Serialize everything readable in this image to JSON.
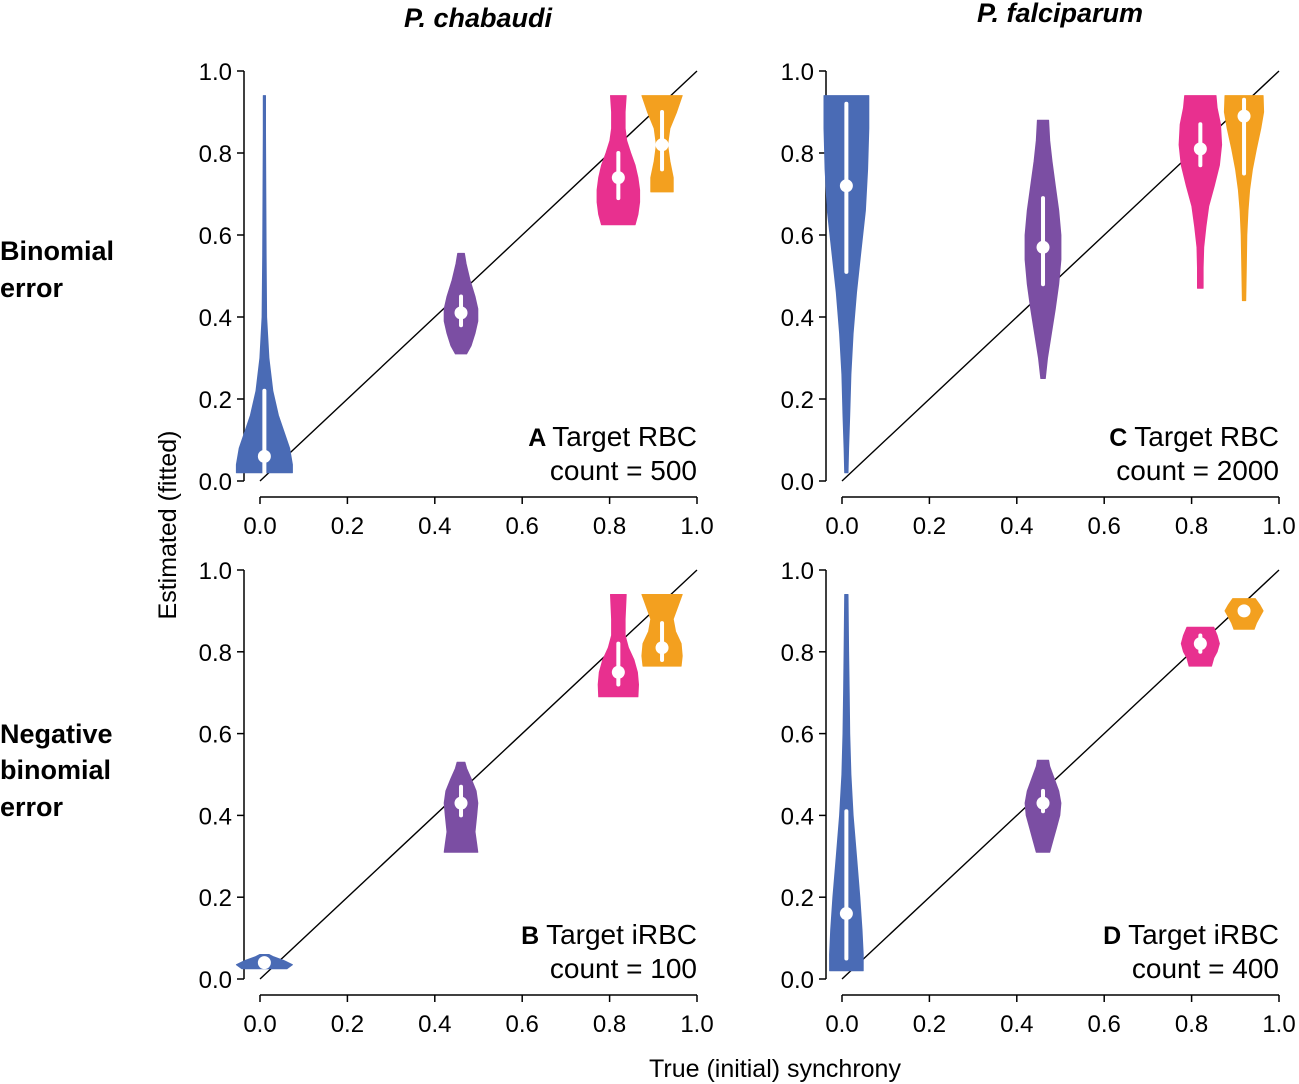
{
  "figure": {
    "col_titles": [
      "P. chabaudi",
      "P. falciparum"
    ],
    "row_titles": [
      [
        "Binomial",
        "error"
      ],
      [
        "Negative",
        "binomial",
        "error"
      ]
    ],
    "xlabel": "True (initial) synchrony",
    "ylabel": "Estimated (fitted)",
    "tick_labels": [
      "0.0",
      "0.2",
      "0.4",
      "0.6",
      "0.8",
      "1.0"
    ]
  },
  "chart_data": [
    {
      "type": "violin",
      "panel": "A",
      "label_lines": [
        "Target RBC",
        "count = 500"
      ],
      "xlim": [
        0,
        1
      ],
      "ylim": [
        0,
        1
      ],
      "xticks": [
        0,
        0.2,
        0.4,
        0.6,
        0.8,
        1.0
      ],
      "yticks": [
        0,
        0.2,
        0.4,
        0.6,
        0.8,
        1.0
      ],
      "reference_line": "y = x",
      "violins": [
        {
          "true": 0.01,
          "median": 0.06,
          "q1": 0.02,
          "q3": 0.22,
          "color": "#4a6bb5",
          "profile": [
            [
              0.02,
              0.05
            ],
            [
              0.04,
              0.05
            ],
            [
              0.08,
              0.045
            ],
            [
              0.12,
              0.035
            ],
            [
              0.16,
              0.025
            ],
            [
              0.22,
              0.015
            ],
            [
              0.3,
              0.008
            ],
            [
              0.4,
              0.004
            ],
            [
              0.55,
              0.003
            ],
            [
              0.7,
              0.0025
            ],
            [
              0.85,
              0.002
            ],
            [
              0.94,
              0.002
            ]
          ]
        },
        {
          "true": 0.46,
          "median": 0.41,
          "q1": 0.38,
          "q3": 0.45,
          "color": "#7b4ea3",
          "profile": [
            [
              0.31,
              0.01
            ],
            [
              0.33,
              0.018
            ],
            [
              0.36,
              0.025
            ],
            [
              0.39,
              0.03
            ],
            [
              0.42,
              0.03
            ],
            [
              0.45,
              0.025
            ],
            [
              0.49,
              0.016
            ],
            [
              0.53,
              0.009
            ],
            [
              0.555,
              0.006
            ]
          ]
        },
        {
          "true": 0.82,
          "median": 0.74,
          "q1": 0.69,
          "q3": 0.8,
          "color": "#e8308f",
          "profile": [
            [
              0.625,
              0.03
            ],
            [
              0.65,
              0.035
            ],
            [
              0.68,
              0.038
            ],
            [
              0.71,
              0.038
            ],
            [
              0.74,
              0.035
            ],
            [
              0.77,
              0.03
            ],
            [
              0.8,
              0.022
            ],
            [
              0.83,
              0.015
            ],
            [
              0.86,
              0.012
            ],
            [
              0.9,
              0.012
            ],
            [
              0.94,
              0.014
            ]
          ]
        },
        {
          "true": 0.92,
          "median": 0.82,
          "q1": 0.76,
          "q3": 0.9,
          "color": "#f3a01f",
          "profile": [
            [
              0.705,
              0.02
            ],
            [
              0.74,
              0.02
            ],
            [
              0.78,
              0.014
            ],
            [
              0.82,
              0.01
            ],
            [
              0.86,
              0.014
            ],
            [
              0.9,
              0.026
            ],
            [
              0.94,
              0.036
            ]
          ]
        }
      ]
    },
    {
      "type": "violin",
      "panel": "B",
      "label_lines": [
        "Target iRBC",
        "count = 100"
      ],
      "xlim": [
        0,
        1
      ],
      "ylim": [
        0,
        1
      ],
      "xticks": [
        0,
        0.2,
        0.4,
        0.6,
        0.8,
        1.0
      ],
      "yticks": [
        0,
        0.2,
        0.4,
        0.6,
        0.8,
        1.0
      ],
      "reference_line": "y = x",
      "violins": [
        {
          "true": 0.01,
          "median": 0.04,
          "q1": 0.03,
          "q3": 0.05,
          "color": "#4a6bb5",
          "profile": [
            [
              0.025,
              0.04
            ],
            [
              0.035,
              0.05
            ],
            [
              0.045,
              0.035
            ],
            [
              0.055,
              0.015
            ],
            [
              0.06,
              0.008
            ]
          ]
        },
        {
          "true": 0.46,
          "median": 0.43,
          "q1": 0.4,
          "q3": 0.47,
          "color": "#7b4ea3",
          "profile": [
            [
              0.31,
              0.03
            ],
            [
              0.33,
              0.028
            ],
            [
              0.36,
              0.025
            ],
            [
              0.4,
              0.028
            ],
            [
              0.43,
              0.03
            ],
            [
              0.46,
              0.027
            ],
            [
              0.49,
              0.018
            ],
            [
              0.515,
              0.01
            ],
            [
              0.53,
              0.007
            ]
          ]
        },
        {
          "true": 0.82,
          "median": 0.75,
          "q1": 0.72,
          "q3": 0.82,
          "color": "#e8308f",
          "profile": [
            [
              0.69,
              0.035
            ],
            [
              0.72,
              0.036
            ],
            [
              0.75,
              0.034
            ],
            [
              0.78,
              0.028
            ],
            [
              0.81,
              0.018
            ],
            [
              0.84,
              0.012
            ],
            [
              0.88,
              0.012
            ],
            [
              0.94,
              0.014
            ]
          ]
        },
        {
          "true": 0.92,
          "median": 0.81,
          "q1": 0.78,
          "q3": 0.87,
          "color": "#f3a01f",
          "profile": [
            [
              0.765,
              0.034
            ],
            [
              0.79,
              0.036
            ],
            [
              0.82,
              0.034
            ],
            [
              0.85,
              0.024
            ],
            [
              0.88,
              0.02
            ],
            [
              0.91,
              0.028
            ],
            [
              0.94,
              0.036
            ]
          ]
        }
      ]
    },
    {
      "type": "violin",
      "panel": "C",
      "label_lines": [
        "Target RBC",
        "count = 2000"
      ],
      "xlim": [
        0,
        1
      ],
      "ylim": [
        0,
        1
      ],
      "xticks": [
        0,
        0.2,
        0.4,
        0.6,
        0.8,
        1.0
      ],
      "yticks": [
        0,
        0.2,
        0.4,
        0.6,
        0.8,
        1.0
      ],
      "reference_line": "y = x",
      "violins": [
        {
          "true": 0.01,
          "median": 0.72,
          "q1": 0.51,
          "q3": 0.92,
          "color": "#4a6bb5",
          "profile": [
            [
              0.02,
              0.003
            ],
            [
              0.08,
              0.004
            ],
            [
              0.16,
              0.006
            ],
            [
              0.26,
              0.008
            ],
            [
              0.36,
              0.012
            ],
            [
              0.46,
              0.018
            ],
            [
              0.56,
              0.026
            ],
            [
              0.66,
              0.034
            ],
            [
              0.76,
              0.038
            ],
            [
              0.86,
              0.04
            ],
            [
              0.94,
              0.04
            ]
          ]
        },
        {
          "true": 0.46,
          "median": 0.57,
          "q1": 0.48,
          "q3": 0.69,
          "color": "#7b4ea3",
          "profile": [
            [
              0.25,
              0.004
            ],
            [
              0.3,
              0.008
            ],
            [
              0.36,
              0.015
            ],
            [
              0.42,
              0.022
            ],
            [
              0.48,
              0.028
            ],
            [
              0.54,
              0.032
            ],
            [
              0.6,
              0.032
            ],
            [
              0.66,
              0.028
            ],
            [
              0.72,
              0.022
            ],
            [
              0.78,
              0.016
            ],
            [
              0.83,
              0.012
            ],
            [
              0.88,
              0.01
            ]
          ]
        },
        {
          "true": 0.82,
          "median": 0.81,
          "q1": 0.77,
          "q3": 0.87,
          "color": "#e8308f",
          "profile": [
            [
              0.47,
              0.005
            ],
            [
              0.52,
              0.005
            ],
            [
              0.57,
              0.006
            ],
            [
              0.62,
              0.01
            ],
            [
              0.67,
              0.015
            ],
            [
              0.72,
              0.025
            ],
            [
              0.77,
              0.034
            ],
            [
              0.82,
              0.038
            ],
            [
              0.87,
              0.036
            ],
            [
              0.91,
              0.03
            ],
            [
              0.94,
              0.028
            ]
          ]
        },
        {
          "true": 0.92,
          "median": 0.89,
          "q1": 0.75,
          "q3": 0.93,
          "color": "#f3a01f",
          "profile": [
            [
              0.44,
              0.003
            ],
            [
              0.52,
              0.004
            ],
            [
              0.6,
              0.005
            ],
            [
              0.66,
              0.007
            ],
            [
              0.71,
              0.01
            ],
            [
              0.76,
              0.015
            ],
            [
              0.81,
              0.022
            ],
            [
              0.86,
              0.03
            ],
            [
              0.9,
              0.035
            ],
            [
              0.94,
              0.034
            ]
          ]
        }
      ]
    },
    {
      "type": "violin",
      "panel": "D",
      "label_lines": [
        "Target iRBC",
        "count = 400"
      ],
      "xlim": [
        0,
        1
      ],
      "ylim": [
        0,
        1
      ],
      "xticks": [
        0,
        0.2,
        0.4,
        0.6,
        0.8,
        1.0
      ],
      "yticks": [
        0,
        0.2,
        0.4,
        0.6,
        0.8,
        1.0
      ],
      "reference_line": "y = x",
      "violins": [
        {
          "true": 0.01,
          "median": 0.16,
          "q1": 0.05,
          "q3": 0.41,
          "color": "#4a6bb5",
          "profile": [
            [
              0.02,
              0.03
            ],
            [
              0.06,
              0.03
            ],
            [
              0.12,
              0.028
            ],
            [
              0.2,
              0.024
            ],
            [
              0.3,
              0.018
            ],
            [
              0.4,
              0.012
            ],
            [
              0.5,
              0.008
            ],
            [
              0.6,
              0.006
            ],
            [
              0.7,
              0.005
            ],
            [
              0.8,
              0.004
            ],
            [
              0.94,
              0.003
            ]
          ]
        },
        {
          "true": 0.46,
          "median": 0.43,
          "q1": 0.41,
          "q3": 0.46,
          "color": "#7b4ea3",
          "profile": [
            [
              0.31,
              0.012
            ],
            [
              0.34,
              0.018
            ],
            [
              0.37,
              0.024
            ],
            [
              0.4,
              0.03
            ],
            [
              0.43,
              0.032
            ],
            [
              0.46,
              0.028
            ],
            [
              0.49,
              0.02
            ],
            [
              0.52,
              0.012
            ],
            [
              0.535,
              0.01
            ]
          ]
        },
        {
          "true": 0.82,
          "median": 0.82,
          "q1": 0.8,
          "q3": 0.84,
          "color": "#e8308f",
          "profile": [
            [
              0.765,
              0.02
            ],
            [
              0.785,
              0.024
            ],
            [
              0.8,
              0.03
            ],
            [
              0.82,
              0.034
            ],
            [
              0.84,
              0.03
            ],
            [
              0.86,
              0.024
            ]
          ]
        },
        {
          "true": 0.92,
          "median": 0.9,
          "q1": 0.89,
          "q3": 0.91,
          "color": "#f3a01f",
          "profile": [
            [
              0.855,
              0.018
            ],
            [
              0.87,
              0.022
            ],
            [
              0.885,
              0.028
            ],
            [
              0.9,
              0.034
            ],
            [
              0.915,
              0.028
            ],
            [
              0.93,
              0.02
            ]
          ]
        }
      ]
    }
  ]
}
